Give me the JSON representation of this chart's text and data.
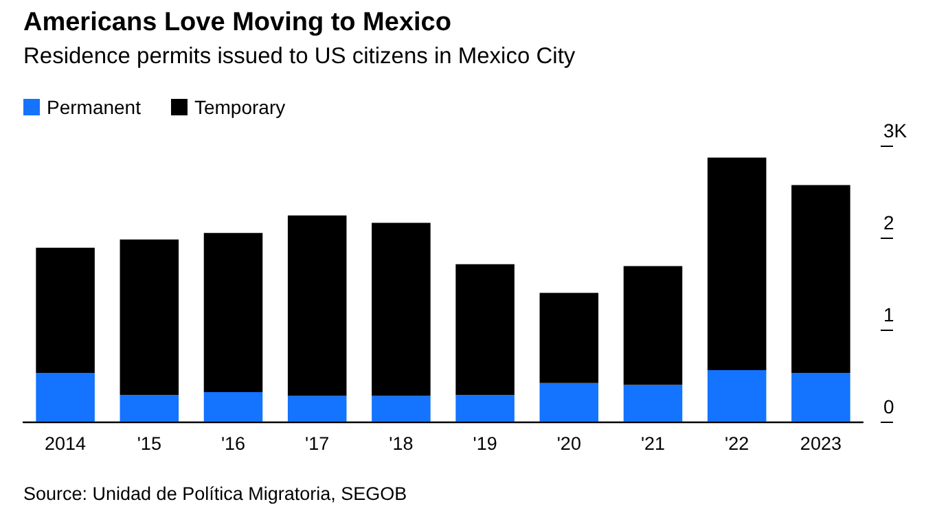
{
  "chart_data": {
    "type": "bar",
    "title": "Americans Love Moving to Mexico",
    "subtitle": "Residence permits issued to US citizens in Mexico City",
    "categories": [
      "2014",
      "'15",
      "'16",
      "'17",
      "'18",
      "'19",
      "'20",
      "'21",
      "'22",
      "2023"
    ],
    "stacked": true,
    "series": [
      {
        "name": "Permanent",
        "color": "#1473ff",
        "values": [
          0.53,
          0.29,
          0.32,
          0.28,
          0.28,
          0.29,
          0.42,
          0.4,
          0.56,
          0.53
        ]
      },
      {
        "name": "Temporary",
        "color": "#000000",
        "values": [
          1.36,
          1.69,
          1.73,
          1.96,
          1.88,
          1.42,
          0.98,
          1.29,
          2.31,
          2.04
        ]
      }
    ],
    "ylim": [
      0,
      3
    ],
    "yticks": [
      0,
      1,
      2,
      {
        "value": 3,
        "label": "3K"
      }
    ],
    "legend": "top left",
    "annotations": [
      "Source: Unidad de Política Migratoria, SEGOB"
    ]
  }
}
